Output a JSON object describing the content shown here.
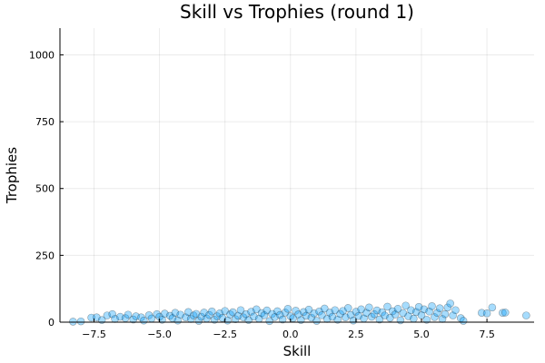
{
  "chart_data": {
    "type": "scatter",
    "title": "Skill vs Trophies (round 1)",
    "xlabel": "Skill",
    "ylabel": "Trophies",
    "xlim": [
      -8.8,
      9.3
    ],
    "ylim": [
      0,
      1100
    ],
    "xticks": [
      -7.5,
      -5.0,
      -2.5,
      0.0,
      2.5,
      5.0,
      7.5
    ],
    "xtick_labels": [
      "−7.5",
      "−5.0",
      "−2.5",
      "0.0",
      "2.5",
      "5.0",
      "7.5"
    ],
    "yticks": [
      0,
      250,
      500,
      750,
      1000
    ],
    "ytick_labels": [
      "0",
      "250",
      "500",
      "750",
      "1000"
    ],
    "grid": true,
    "legend": false,
    "marker_color": "#009AFA",
    "marker_opacity": 0.35,
    "series": [
      {
        "points": [
          [
            -8.3,
            2
          ],
          [
            -8.0,
            3
          ],
          [
            -7.6,
            17
          ],
          [
            -7.4,
            18
          ],
          [
            -7.2,
            8
          ],
          [
            -7.0,
            25
          ],
          [
            -6.8,
            30
          ],
          [
            -6.7,
            12
          ],
          [
            -6.5,
            20
          ],
          [
            -6.3,
            15
          ],
          [
            -6.2,
            28
          ],
          [
            -6.0,
            10
          ],
          [
            -5.9,
            22
          ],
          [
            -5.7,
            18
          ],
          [
            -5.6,
            6
          ],
          [
            -5.4,
            26
          ],
          [
            -5.3,
            14
          ],
          [
            -5.1,
            30
          ],
          [
            -5.0,
            20
          ],
          [
            -4.9,
            9
          ],
          [
            -4.8,
            32
          ],
          [
            -4.6,
            24
          ],
          [
            -4.5,
            15
          ],
          [
            -4.4,
            35
          ],
          [
            -4.3,
            6
          ],
          [
            -4.2,
            28
          ],
          [
            -4.0,
            18
          ],
          [
            -3.9,
            38
          ],
          [
            -3.8,
            12
          ],
          [
            -3.7,
            25
          ],
          [
            -3.6,
            31
          ],
          [
            -3.5,
            5
          ],
          [
            -3.4,
            20
          ],
          [
            -3.3,
            36
          ],
          [
            -3.2,
            14
          ],
          [
            -3.1,
            27
          ],
          [
            -3.0,
            40
          ],
          [
            -2.9,
            9
          ],
          [
            -2.8,
            22
          ],
          [
            -2.7,
            33
          ],
          [
            -2.6,
            16
          ],
          [
            -2.5,
            42
          ],
          [
            -2.4,
            6
          ],
          [
            -2.3,
            29
          ],
          [
            -2.2,
            37
          ],
          [
            -2.1,
            11
          ],
          [
            -2.0,
            24
          ],
          [
            -1.9,
            45
          ],
          [
            -1.8,
            18
          ],
          [
            -1.7,
            30
          ],
          [
            -1.6,
            8
          ],
          [
            -1.5,
            39
          ],
          [
            -1.4,
            21
          ],
          [
            -1.3,
            48
          ],
          [
            -1.2,
            13
          ],
          [
            -1.1,
            34
          ],
          [
            -1.0,
            26
          ],
          [
            -0.9,
            44
          ],
          [
            -0.8,
            4
          ],
          [
            -0.7,
            31
          ],
          [
            -0.6,
            19
          ],
          [
            -0.5,
            41
          ],
          [
            -0.4,
            27
          ],
          [
            -0.3,
            10
          ],
          [
            -0.2,
            36
          ],
          [
            -0.1,
            50
          ],
          [
            0.0,
            22
          ],
          [
            0.1,
            15
          ],
          [
            0.2,
            43
          ],
          [
            0.3,
            29
          ],
          [
            0.4,
            8
          ],
          [
            0.5,
            38
          ],
          [
            0.6,
            24
          ],
          [
            0.7,
            47
          ],
          [
            0.8,
            17
          ],
          [
            0.9,
            33
          ],
          [
            1.0,
            5
          ],
          [
            1.1,
            40
          ],
          [
            1.2,
            26
          ],
          [
            1.3,
            51
          ],
          [
            1.4,
            12
          ],
          [
            1.5,
            36
          ],
          [
            1.6,
            20
          ],
          [
            1.7,
            45
          ],
          [
            1.8,
            9
          ],
          [
            1.9,
            31
          ],
          [
            2.0,
            42
          ],
          [
            2.1,
            18
          ],
          [
            2.2,
            53
          ],
          [
            2.3,
            27
          ],
          [
            2.4,
            6
          ],
          [
            2.5,
            39
          ],
          [
            2.6,
            23
          ],
          [
            2.7,
            48
          ],
          [
            2.8,
            14
          ],
          [
            2.9,
            35
          ],
          [
            3.0,
            55
          ],
          [
            3.1,
            20
          ],
          [
            3.2,
            30
          ],
          [
            3.3,
            44
          ],
          [
            3.4,
            10
          ],
          [
            3.5,
            37
          ],
          [
            3.6,
            25
          ],
          [
            3.7,
            58
          ],
          [
            3.8,
            16
          ],
          [
            3.9,
            41
          ],
          [
            4.0,
            29
          ],
          [
            4.1,
            50
          ],
          [
            4.2,
            7
          ],
          [
            4.3,
            34
          ],
          [
            4.4,
            62
          ],
          [
            4.5,
            22
          ],
          [
            4.6,
            45
          ],
          [
            4.7,
            13
          ],
          [
            4.8,
            38
          ],
          [
            4.9,
            57
          ],
          [
            5.0,
            26
          ],
          [
            5.1,
            48
          ],
          [
            5.2,
            9
          ],
          [
            5.3,
            40
          ],
          [
            5.4,
            60
          ],
          [
            5.5,
            19
          ],
          [
            5.6,
            35
          ],
          [
            5.7,
            52
          ],
          [
            5.8,
            12
          ],
          [
            5.9,
            30
          ],
          [
            6.0,
            55
          ],
          [
            6.1,
            70
          ],
          [
            6.2,
            25
          ],
          [
            6.3,
            45
          ],
          [
            6.5,
            15
          ],
          [
            6.6,
            5
          ],
          [
            7.3,
            35
          ],
          [
            7.5,
            33
          ],
          [
            7.7,
            55
          ],
          [
            8.1,
            35
          ],
          [
            8.2,
            36
          ],
          [
            9.0,
            25
          ]
        ]
      }
    ]
  }
}
